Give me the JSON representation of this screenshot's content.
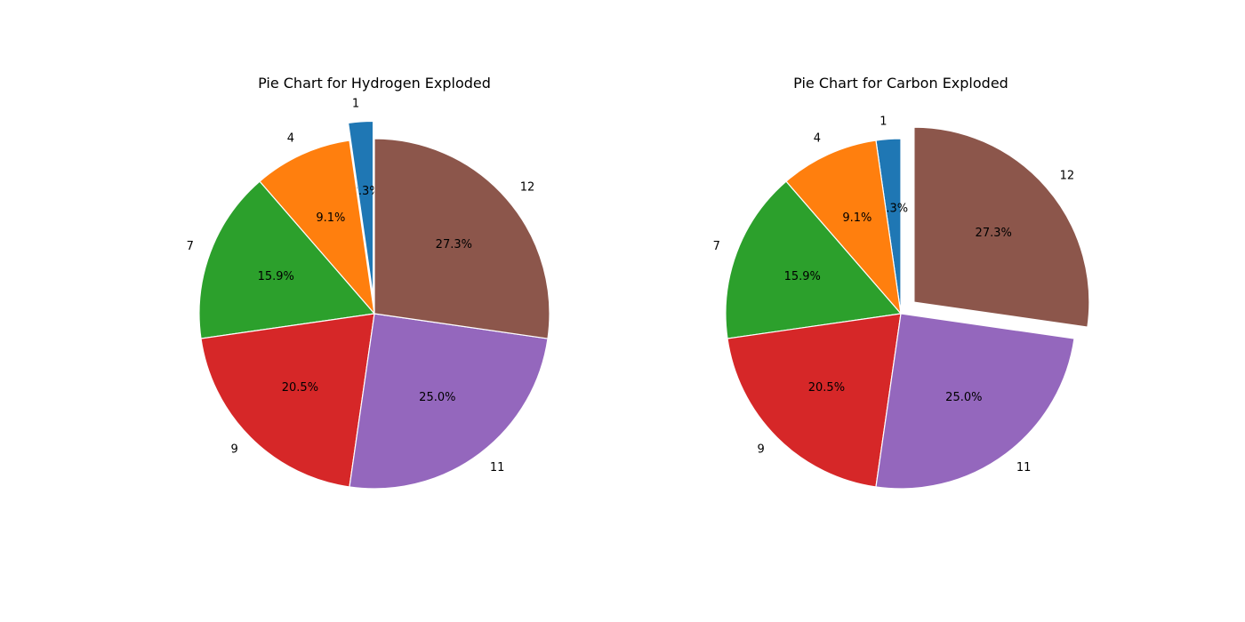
{
  "chart_data": [
    {
      "type": "pie",
      "title": "Pie Chart for Hydrogen Exploded",
      "labels": [
        "1",
        "4",
        "7",
        "9",
        "11",
        "12"
      ],
      "values": [
        1,
        4,
        7,
        9,
        11,
        12
      ],
      "percent_labels": [
        "2.3%",
        "9.1%",
        "15.9%",
        "20.5%",
        "25.0%",
        "27.3%"
      ],
      "explode": [
        0.1,
        0,
        0,
        0,
        0,
        0
      ],
      "colors": [
        "#1f77b4",
        "#ff7f0e",
        "#2ca02c",
        "#d62728",
        "#9467bd",
        "#8c564b"
      ],
      "start_angle_deg": 90,
      "direction": "counterclockwise"
    },
    {
      "type": "pie",
      "title": "Pie Chart for Carbon Exploded",
      "labels": [
        "1",
        "4",
        "7",
        "9",
        "11",
        "12"
      ],
      "values": [
        1,
        4,
        7,
        9,
        11,
        12
      ],
      "percent_labels": [
        "2.3%",
        "9.1%",
        "15.9%",
        "20.5%",
        "25.0%",
        "27.3%"
      ],
      "explode": [
        0,
        0,
        0,
        0,
        0,
        0.1
      ],
      "colors": [
        "#1f77b4",
        "#ff7f0e",
        "#2ca02c",
        "#d62728",
        "#9467bd",
        "#8c564b"
      ],
      "start_angle_deg": 90,
      "direction": "counterclockwise"
    }
  ]
}
